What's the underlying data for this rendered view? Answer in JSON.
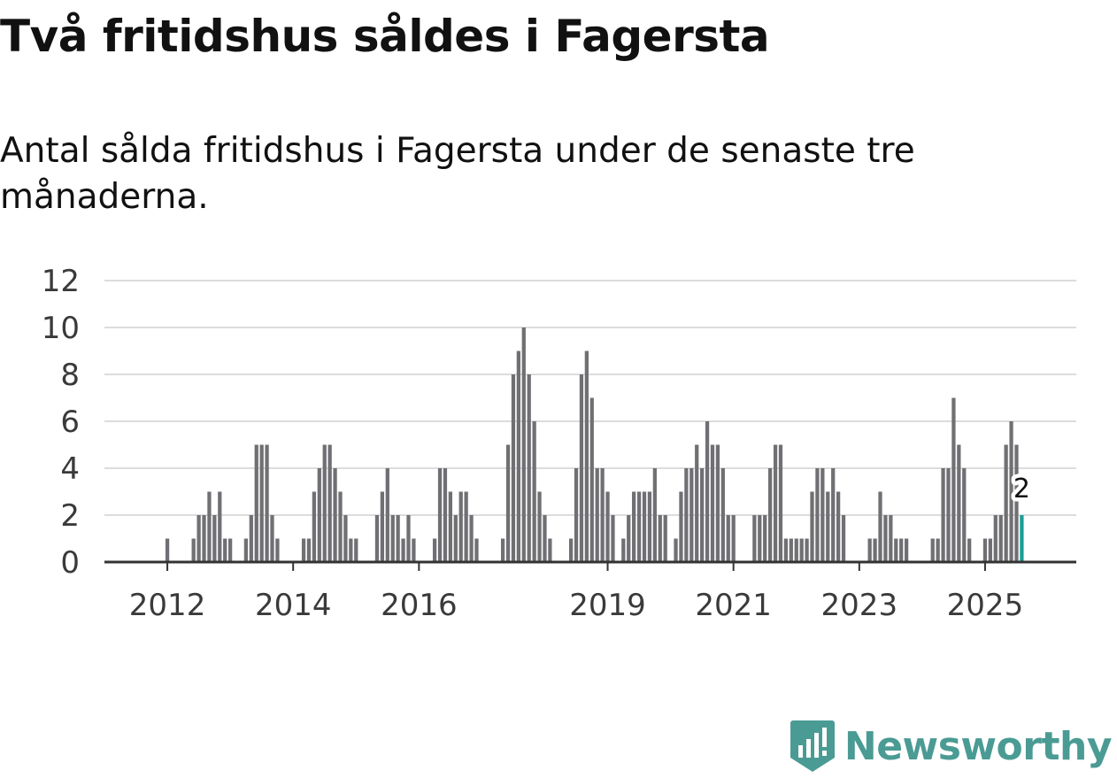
{
  "header": {
    "title": "Två fritidshus såldes i Fagersta",
    "subtitle": "Antal sålda fritidshus i Fagersta under de senaste tre månaderna."
  },
  "chart_data": {
    "type": "bar",
    "title": "Två fritidshus såldes i Fagersta",
    "subtitle": "Antal sålda fritidshus i Fagersta under de senaste tre månaderna.",
    "xlabel": "",
    "ylabel": "",
    "ylim": [
      0,
      12
    ],
    "yticks": [
      0,
      2,
      4,
      6,
      8,
      10,
      12
    ],
    "xlim": [
      2011.0,
      2026.45
    ],
    "xticks": [
      {
        "year": 2012,
        "label": "2012"
      },
      {
        "year": 2014,
        "label": "2014"
      },
      {
        "year": 2016,
        "label": "2016"
      },
      {
        "year": 2019,
        "label": "2019"
      },
      {
        "year": 2021,
        "label": "2021"
      },
      {
        "year": 2023,
        "label": "2023"
      },
      {
        "year": 2025,
        "label": "2025"
      }
    ],
    "start": "2012-01",
    "grid": true,
    "colors": {
      "bar": "#707074",
      "highlight": "#1a9e96",
      "grid": "#dcdcdc",
      "axis": "#333333",
      "text": "#3a3a3a"
    },
    "values": [
      1,
      0,
      0,
      0,
      0,
      1,
      2,
      2,
      3,
      2,
      3,
      1,
      1,
      0,
      0,
      1,
      2,
      5,
      5,
      5,
      2,
      1,
      0,
      0,
      0,
      0,
      1,
      1,
      3,
      4,
      5,
      5,
      4,
      3,
      2,
      1,
      1,
      0,
      0,
      0,
      2,
      3,
      4,
      2,
      2,
      1,
      2,
      1,
      0,
      0,
      0,
      1,
      4,
      4,
      3,
      2,
      3,
      3,
      2,
      1,
      0,
      0,
      0,
      0,
      1,
      5,
      8,
      9,
      10,
      8,
      6,
      3,
      2,
      1,
      0,
      0,
      0,
      1,
      4,
      8,
      9,
      7,
      4,
      4,
      3,
      2,
      0,
      1,
      2,
      3,
      3,
      3,
      3,
      4,
      2,
      2,
      0,
      1,
      3,
      4,
      4,
      5,
      4,
      6,
      5,
      5,
      4,
      2,
      2,
      0,
      0,
      0,
      2,
      2,
      2,
      4,
      5,
      5,
      1,
      1,
      1,
      1,
      1,
      3,
      4,
      4,
      3,
      4,
      3,
      2,
      0,
      0,
      0,
      0,
      1,
      1,
      3,
      2,
      2,
      1,
      1,
      1,
      0,
      0,
      0,
      0,
      1,
      1,
      4,
      4,
      7,
      5,
      4,
      1,
      0,
      0,
      1,
      1,
      2,
      2,
      5,
      6,
      5,
      2
    ],
    "highlight": {
      "index": 163,
      "value": 2,
      "label": "2"
    }
  },
  "logo": {
    "text": "Newsworthy",
    "icon": "newsworthy-logo-icon"
  }
}
